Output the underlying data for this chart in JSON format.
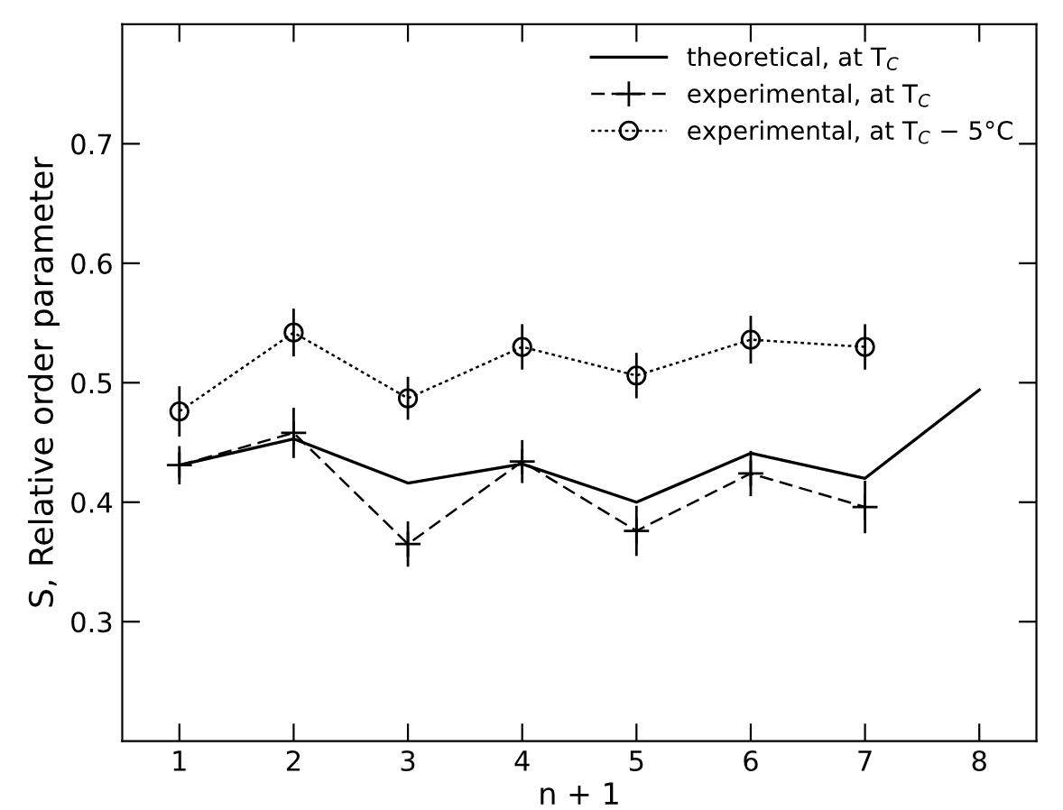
{
  "chart_data": {
    "type": "line",
    "xlabel": "n + 1",
    "ylabel": "S, Relative order parameter",
    "xlim": [
      0.5,
      8.5
    ],
    "ylim": [
      0.2,
      0.8
    ],
    "xticks": [
      1,
      2,
      3,
      4,
      5,
      6,
      7,
      8
    ],
    "yticks": [
      0.3,
      0.4,
      0.5,
      0.6,
      0.7
    ],
    "grid": false,
    "legend": "top right",
    "series": [
      {
        "name": "theoretical, at T$_{C}$",
        "color": "#000000",
        "line_style": "solid",
        "marker": "none",
        "x": [
          1,
          2,
          3,
          4,
          5,
          6,
          7,
          8
        ],
        "values": [
          0.431,
          0.453,
          0.416,
          0.432,
          0.4,
          0.441,
          0.42,
          0.494
        ]
      },
      {
        "name": "experimental, at T$_{C}$",
        "color": "#000000",
        "line_style": "dashed",
        "marker": "cross",
        "x": [
          1,
          2,
          3,
          4,
          5,
          6,
          7
        ],
        "values": [
          0.431,
          0.458,
          0.365,
          0.434,
          0.376,
          0.424,
          0.396
        ],
        "errors": [
          0.016,
          0.021,
          0.019,
          0.018,
          0.021,
          0.019,
          0.022
        ]
      },
      {
        "name": "experimental, at T$_{C}$ − 5°C",
        "color": "#000000",
        "line_style": "dotted",
        "marker": "circle",
        "x": [
          1,
          2,
          3,
          4,
          5,
          6,
          7
        ],
        "values": [
          0.476,
          0.542,
          0.487,
          0.53,
          0.506,
          0.536,
          0.53
        ],
        "errors": [
          0.021,
          0.02,
          0.018,
          0.019,
          0.019,
          0.02,
          0.019
        ]
      }
    ]
  }
}
